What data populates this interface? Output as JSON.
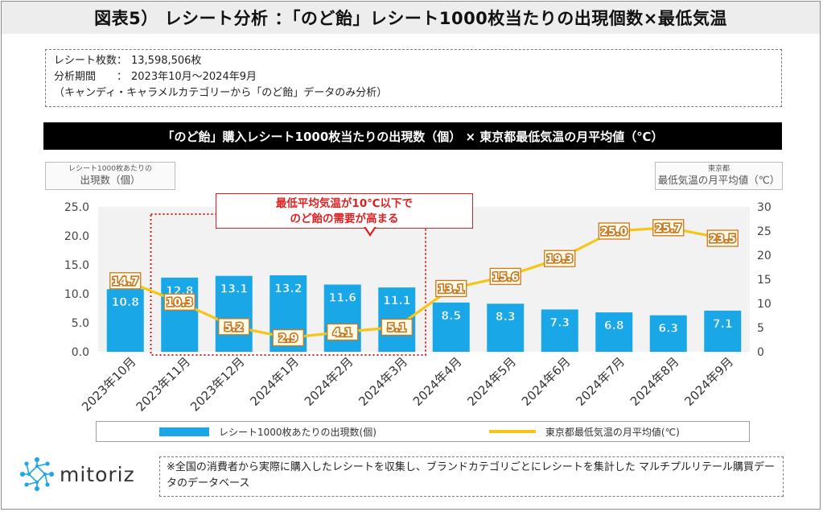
{
  "title": "図表5） レシート分析 ：「のど飴」レシート1000枚当たりの出現個数×最低気温",
  "info": {
    "receipt_label": "レシート枚数：",
    "receipt_value": "13,598,506枚",
    "period_label": "分析期間　　：",
    "period_value": "2023年10月～2024年9月",
    "note": "（キャンディ・キャラメルカテゴリーから「のど飴」データのみ分析）"
  },
  "chart_header": "「のど飴」購入レシート1000枚当たりの出現数（個） ×  東京都最低気温の月平均値（℃）",
  "left_axis_box": {
    "small": "レシート1000枚あたりの",
    "big": "出現数（個）"
  },
  "right_axis_box": {
    "small": "東京都",
    "big": "最低気温の月平均値（℃）"
  },
  "callout": {
    "line1": "最低平均気温が10℃以下で",
    "line2": "のど飴の需要が高まる"
  },
  "footer_note": "※全国の消費者から実際に購入したレシートを収集し、ブランドカテゴリごとにレシートを集計した マルチプルリテール購買データのデータベース",
  "logo_text": "mitoriz",
  "colors": {
    "bar": "#1aa7e8",
    "line": "#f5c518",
    "label_box": "#c8781e",
    "highlight": "#d42020",
    "plot_bg": "#f2f2f2"
  },
  "chart_data": {
    "type": "bar",
    "categories": [
      "2023年10月",
      "2023年11月",
      "2023年12月",
      "2024年1月",
      "2024年2月",
      "2024年3月",
      "2024年4月",
      "2024年5月",
      "2024年6月",
      "2024年7月",
      "2024年8月",
      "2024年9月"
    ],
    "series": [
      {
        "name": "レシート1000枚あたりの出現数(個)",
        "type": "bar",
        "axis": "left",
        "values": [
          10.8,
          12.8,
          13.1,
          13.2,
          11.6,
          11.1,
          8.5,
          8.3,
          7.3,
          6.8,
          6.3,
          7.1
        ]
      },
      {
        "name": "東京都最低気温の月平均値(℃)",
        "type": "line",
        "axis": "right",
        "values": [
          14.7,
          10.3,
          5.2,
          2.9,
          4.1,
          5.1,
          13.1,
          15.6,
          19.3,
          25.0,
          25.7,
          23.5
        ]
      }
    ],
    "left_axis": {
      "ylim": [
        0,
        25
      ],
      "ticks": [
        "0.0",
        "5.0",
        "10.0",
        "15.0",
        "20.0",
        "25.0"
      ]
    },
    "right_axis": {
      "ylim": [
        0,
        30
      ],
      "ticks": [
        "0",
        "5",
        "10",
        "15",
        "20",
        "25",
        "30"
      ]
    },
    "highlight_categories": [
      "2023年11月",
      "2024年3月"
    ],
    "legend_position": "bottom",
    "grid": false
  }
}
